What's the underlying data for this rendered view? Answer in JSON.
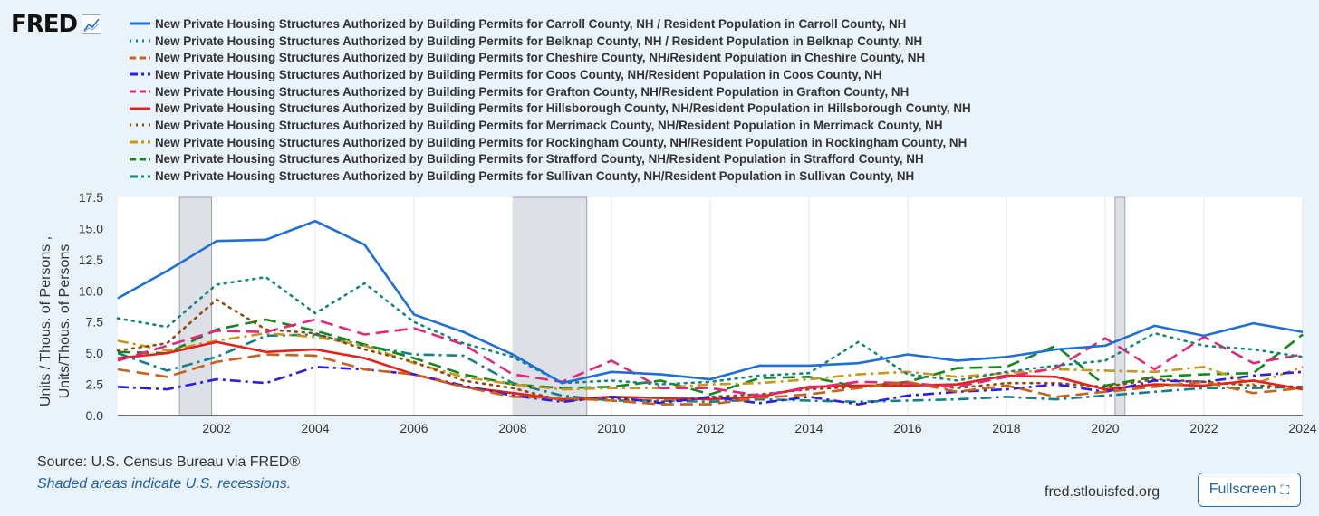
{
  "header": {
    "logo_text": "FRED",
    "logo_icon": "chart-line-icon"
  },
  "footer": {
    "source": "Source: U.S. Census Bureau via FRED®",
    "recession_note": "Shaded areas indicate U.S. recessions.",
    "site": "fred.stlouisfed.org",
    "fullscreen_label": "Fullscreen",
    "fullscreen_icon": "expand-icon"
  },
  "chart_data": {
    "type": "line",
    "ylabel_lines": [
      "Units / Thous. of Persons ,",
      "Units/Thous. of Persons"
    ],
    "xlim": [
      2000,
      2024
    ],
    "ylim": [
      0,
      17.5
    ],
    "x_ticks": [
      2002,
      2004,
      2006,
      2008,
      2010,
      2012,
      2014,
      2016,
      2018,
      2020,
      2022,
      2024
    ],
    "y_ticks": [
      "0.0",
      "2.5",
      "5.0",
      "7.5",
      "10.0",
      "12.5",
      "15.0",
      "17.5"
    ],
    "grid": "vertical",
    "legend_position": "top",
    "recessions": [
      [
        2001.25,
        2001.9
      ],
      [
        2008.0,
        2009.5
      ],
      [
        2020.2,
        2020.4
      ]
    ],
    "x": [
      2000,
      2001,
      2002,
      2003,
      2004,
      2005,
      2006,
      2007,
      2008,
      2009,
      2010,
      2011,
      2012,
      2013,
      2014,
      2015,
      2016,
      2017,
      2018,
      2019,
      2020,
      2021,
      2022,
      2023,
      2024
    ],
    "series": [
      {
        "name": "New Private Housing Structures Authorized by Building Permits for Carroll County, NH / Resident Population in Carroll County, NH",
        "color": "#1f6fd8",
        "dash": "solid",
        "values": [
          9.4,
          11.6,
          14.0,
          14.1,
          15.6,
          13.7,
          8.1,
          6.7,
          4.9,
          2.6,
          3.5,
          3.3,
          2.9,
          4.0,
          4.0,
          4.2,
          4.9,
          4.4,
          4.7,
          5.3,
          5.6,
          7.2,
          6.4,
          7.4,
          6.7
        ]
      },
      {
        "name": "New Private Housing Structures Authorized by Building Permits for Belknap County, NH / Resident Population in Belknap County, NH",
        "color": "#16857c",
        "dash": "dot",
        "values": [
          7.8,
          7.1,
          10.5,
          11.1,
          8.2,
          10.6,
          7.5,
          5.8,
          4.7,
          2.6,
          2.8,
          2.5,
          2.7,
          3.2,
          3.4,
          5.9,
          3.3,
          2.8,
          3.5,
          4.0,
          4.4,
          6.6,
          5.6,
          5.3,
          4.7
        ]
      },
      {
        "name": "New Private Housing Structures Authorized by Building Permits for Cheshire County, NH/Resident Population in Cheshire County, NH",
        "color": "#c8621a",
        "dash": "longdash",
        "values": [
          3.7,
          3.1,
          4.3,
          4.9,
          4.8,
          3.7,
          3.3,
          2.3,
          1.5,
          1.4,
          1.2,
          0.9,
          0.9,
          1.4,
          1.7,
          2.2,
          2.7,
          1.9,
          2.4,
          1.5,
          1.9,
          2.3,
          2.7,
          1.8,
          2.2
        ]
      },
      {
        "name": "New Private Housing Structures Authorized by Building Permits for Coos County, NH/Resident Population in Coos County, NH",
        "color": "#2c1fe0",
        "dash": "dashdot",
        "values": [
          2.3,
          2.1,
          2.9,
          2.6,
          3.9,
          3.7,
          3.3,
          2.4,
          1.6,
          1.1,
          1.5,
          1.0,
          1.5,
          1.0,
          1.5,
          0.9,
          1.6,
          1.9,
          2.1,
          2.5,
          1.9,
          2.8,
          2.7,
          3.2,
          3.5
        ]
      },
      {
        "name": "New Private Housing Structures Authorized by Building Permits for Grafton County, NH/Resident Population in Grafton County, NH",
        "color": "#e0297a",
        "dash": "longdash",
        "values": [
          4.4,
          5.6,
          6.8,
          6.7,
          7.7,
          6.5,
          7.0,
          5.7,
          3.3,
          2.7,
          4.4,
          2.2,
          2.2,
          1.6,
          2.2,
          2.7,
          2.6,
          2.3,
          3.1,
          3.8,
          6.2,
          3.7,
          6.3,
          4.2,
          4.9
        ]
      },
      {
        "name": "New Private Housing Structures Authorized by Building Permits for Hillsborough County, NH/Resident Population in Hillsborough County, NH",
        "color": "#e3221b",
        "dash": "solid",
        "values": [
          4.6,
          5.0,
          5.9,
          5.1,
          5.3,
          4.6,
          3.3,
          2.3,
          1.8,
          1.3,
          1.5,
          1.4,
          1.3,
          1.5,
          2.3,
          2.4,
          2.4,
          2.5,
          3.2,
          3.1,
          2.1,
          2.5,
          2.4,
          2.8,
          2.1
        ]
      },
      {
        "name": "New Private Housing Structures Authorized by Building Permits for Merrimack County, NH/Resident Population in Merrimack County, NH",
        "color": "#8e4a0f",
        "dash": "dot",
        "values": [
          5.2,
          5.8,
          9.3,
          6.9,
          6.6,
          5.3,
          4.3,
          2.8,
          2.2,
          1.2,
          1.4,
          1.1,
          1.5,
          1.7,
          2.1,
          2.3,
          2.6,
          2.2,
          2.6,
          2.6,
          2.3,
          2.9,
          2.7,
          2.4,
          2.3
        ]
      },
      {
        "name": "New Private Housing Structures Authorized by Building Permits for Rockingham County, NH/Resident Population in Rockingham County, NH",
        "color": "#c8961a",
        "dash": "dashdot",
        "values": [
          6.0,
          5.2,
          6.0,
          6.6,
          6.3,
          5.6,
          4.2,
          3.1,
          2.5,
          2.1,
          2.2,
          2.2,
          2.5,
          2.6,
          2.9,
          3.3,
          3.5,
          3.1,
          3.4,
          3.7,
          3.6,
          3.5,
          3.9,
          2.5,
          3.9
        ]
      },
      {
        "name": "New Private Housing Structures Authorized by Building Permits for Strafford County, NH/Resident Population in Strafford County, NH",
        "color": "#14881e",
        "dash": "longdash",
        "values": [
          5.1,
          5.0,
          6.9,
          7.7,
          6.8,
          5.7,
          4.6,
          3.3,
          2.5,
          2.2,
          2.3,
          2.8,
          1.7,
          3.0,
          3.1,
          2.3,
          2.7,
          3.8,
          3.9,
          5.6,
          2.4,
          3.1,
          3.3,
          3.4,
          6.5
        ]
      },
      {
        "name": "New Private Housing Structures Authorized by Building Permits for Sullivan County, NH/Resident Population in Sullivan County, NH",
        "color": "#14808e",
        "dash": "dashdot",
        "values": [
          5.0,
          3.6,
          4.7,
          6.4,
          6.5,
          5.6,
          4.9,
          4.8,
          2.6,
          1.6,
          1.2,
          1.2,
          1.1,
          1.3,
          1.2,
          1.1,
          1.2,
          1.3,
          1.5,
          1.3,
          1.6,
          1.9,
          2.2,
          2.2,
          2.3
        ]
      }
    ]
  }
}
